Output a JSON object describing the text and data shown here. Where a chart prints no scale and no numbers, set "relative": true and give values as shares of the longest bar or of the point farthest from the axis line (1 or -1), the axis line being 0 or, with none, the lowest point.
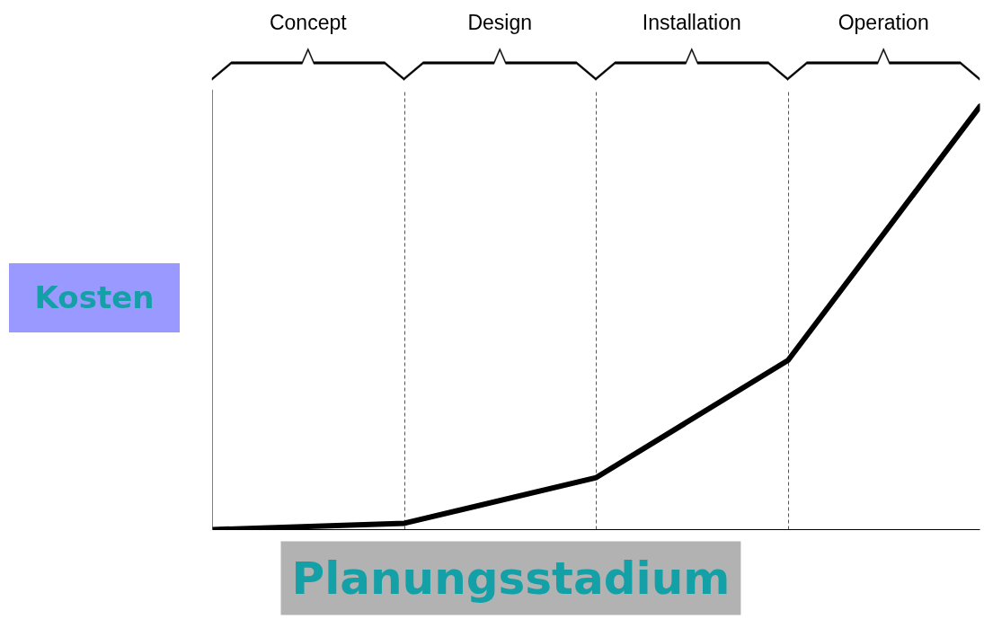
{
  "chart_data": {
    "type": "line",
    "relative": true,
    "xlabel": "Planungsstadium",
    "ylabel": "Kosten",
    "categories": [
      null,
      null,
      null,
      null,
      null
    ],
    "grid": "x",
    "line_style": "solid",
    "series": [
      {
        "color": "#000000",
        "values": [
          0,
          0.015,
          0.123,
          0.4,
          1
        ]
      }
    ],
    "annotations": [
      "Concept",
      "Design",
      "Installation",
      "Operation"
    ]
  }
}
